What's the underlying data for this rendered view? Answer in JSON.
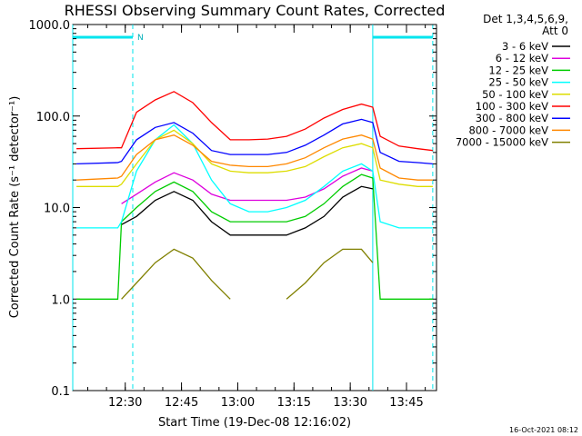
{
  "header": {
    "title": "RHESSI Observing Summary Count Rates, Corrected",
    "timestamp": "16-Oct-2021 08:12"
  },
  "legend": {
    "detectors": "Det 1,3,4,5,6,9,",
    "attenuator": "Att 0"
  },
  "chart_data": {
    "type": "line",
    "title": "RHESSI Observing Summary Count Rates, Corrected",
    "xlabel": "Start Time (19-Dec-08 12:16:02)",
    "ylabel": "Corrected Count Rate (s⁻¹ detector⁻¹)",
    "y_scale": "log",
    "ylim": [
      0.1,
      1000.0
    ],
    "xlim": [
      "12:16",
      "13:53"
    ],
    "x_ticks": [
      "12:30",
      "12:45",
      "13:00",
      "13:15",
      "13:30",
      "13:45"
    ],
    "y_ticks": [
      "0.1",
      "1.0",
      "10.0",
      "100.0",
      "1000.0"
    ],
    "legend_position": "top-right",
    "x": [
      "12:17",
      "12:28",
      "12:29",
      "12:33",
      "12:38",
      "12:43",
      "12:48",
      "12:53",
      "12:58",
      "13:03",
      "13:08",
      "13:13",
      "13:18",
      "13:23",
      "13:28",
      "13:33",
      "13:36",
      "13:38",
      "13:43",
      "13:48",
      "13:52"
    ],
    "series": [
      {
        "name": "3 - 6 keV",
        "color": "#000000",
        "values": [
          null,
          null,
          6.5,
          8,
          12,
          15,
          12,
          7,
          5,
          5,
          5,
          5,
          6,
          8,
          13,
          17,
          16,
          null,
          null,
          null,
          null
        ]
      },
      {
        "name": "6 - 12 keV",
        "color": "#dd00dd",
        "values": [
          null,
          null,
          11,
          14,
          19,
          24,
          20,
          14,
          12,
          12,
          12,
          12,
          13,
          16,
          22,
          27,
          25,
          null,
          null,
          null,
          null
        ]
      },
      {
        "name": "12 - 25 keV",
        "color": "#00cc00",
        "values": [
          1,
          1,
          7,
          10,
          15,
          19,
          15,
          9,
          7,
          7,
          7,
          7,
          8,
          11,
          17,
          23,
          21,
          1,
          1,
          1,
          1
        ]
      },
      {
        "name": "25 - 50 keV",
        "color": "#00ffff",
        "values": [
          6,
          6,
          7,
          25,
          55,
          80,
          50,
          20,
          11,
          9,
          9,
          10,
          12,
          17,
          25,
          30,
          25,
          7,
          6,
          6,
          6
        ]
      },
      {
        "name": "50 - 100 keV",
        "color": "#dddd00",
        "values": [
          17,
          17,
          18,
          30,
          55,
          70,
          50,
          30,
          25,
          24,
          24,
          25,
          28,
          36,
          45,
          50,
          45,
          20,
          18,
          17,
          17
        ]
      },
      {
        "name": "100 - 300 keV",
        "color": "#ff0000",
        "values": [
          44,
          45,
          45,
          110,
          150,
          185,
          140,
          85,
          55,
          55,
          56,
          60,
          72,
          95,
          118,
          135,
          125,
          60,
          47,
          44,
          42
        ]
      },
      {
        "name": "300 - 800 keV",
        "color": "#0000ff",
        "values": [
          30,
          31,
          32,
          55,
          75,
          85,
          65,
          42,
          38,
          38,
          38,
          40,
          48,
          62,
          82,
          92,
          85,
          40,
          32,
          31,
          30
        ]
      },
      {
        "name": "800 - 7000 keV",
        "color": "#ff8800",
        "values": [
          20,
          21,
          22,
          38,
          55,
          62,
          48,
          32,
          29,
          28,
          28,
          30,
          35,
          45,
          56,
          62,
          56,
          27,
          21,
          20,
          20
        ]
      },
      {
        "name": "7000 - 15000 keV",
        "color": "#808000",
        "values": [
          null,
          null,
          1,
          1.5,
          2.5,
          3.5,
          2.8,
          1.6,
          1,
          null,
          null,
          1,
          1.5,
          2.5,
          3.5,
          3.5,
          2.5,
          null,
          null,
          null,
          null
        ]
      }
    ],
    "markers": {
      "label": "N",
      "bar_ranges": [
        [
          "12:16",
          "12:32"
        ],
        [
          "13:36",
          "13:52"
        ]
      ],
      "dashed_lines": [
        "12:32",
        "13:52"
      ],
      "solid_lines": [
        "12:16",
        "13:36"
      ]
    }
  }
}
